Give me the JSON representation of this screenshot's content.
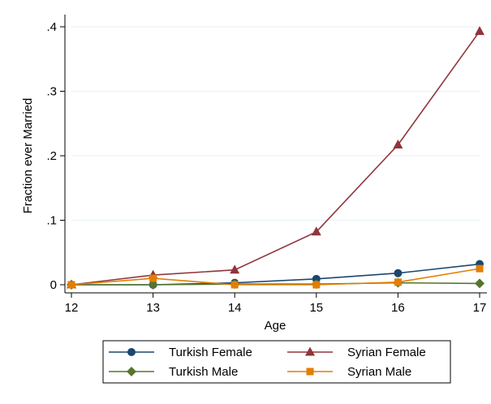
{
  "chart_data": {
    "type": "line",
    "xlabel": "Age",
    "ylabel": "Fraction ever Married",
    "x": [
      12,
      13,
      14,
      15,
      16,
      17
    ],
    "xlim": [
      12,
      17
    ],
    "ylim": [
      0,
      0.4
    ],
    "x_ticks": [
      "12",
      "13",
      "14",
      "15",
      "16",
      "17"
    ],
    "y_ticks": [
      {
        "value": 0,
        "label": "0"
      },
      {
        "value": 0.1,
        "label": ".1"
      },
      {
        "value": 0.2,
        "label": ".2"
      },
      {
        "value": 0.3,
        "label": ".3"
      },
      {
        "value": 0.4,
        "label": ".4"
      }
    ],
    "grid": "horizontal",
    "legend_position": "bottom",
    "series": [
      {
        "name": "Turkish Female",
        "color": "#1a476f",
        "marker": "circle",
        "values": [
          0,
          0,
          0.003,
          0.009,
          0.018,
          0.032
        ]
      },
      {
        "name": "Syrian Female",
        "color": "#90353b",
        "marker": "triangle",
        "values": [
          0,
          0.015,
          0.023,
          0.082,
          0.217,
          0.393
        ]
      },
      {
        "name": "Turkish Male",
        "color": "#55752f",
        "marker": "diamond",
        "values": [
          0,
          0,
          0.001,
          0.001,
          0.003,
          0.002
        ]
      },
      {
        "name": "Syrian Male",
        "color": "#e37e00",
        "marker": "square",
        "values": [
          0,
          0.01,
          0,
          0,
          0.004,
          0.025
        ]
      }
    ]
  }
}
